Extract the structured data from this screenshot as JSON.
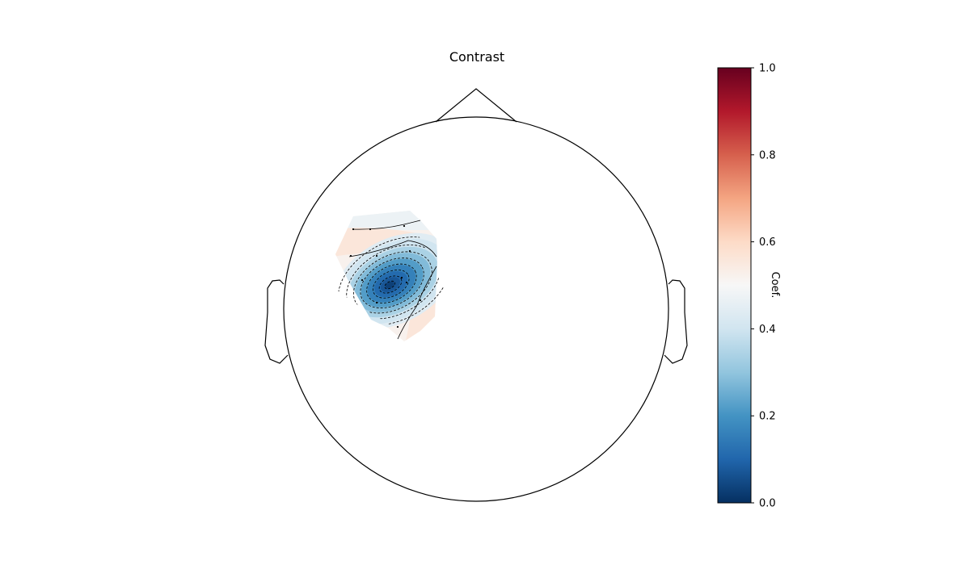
{
  "chart_data": {
    "type": "heatmap",
    "subtype": "topomap",
    "title": "Contrast",
    "colorbar": {
      "label": "Coef.",
      "range": [
        0.0,
        1.0
      ],
      "ticks": [
        "0.0",
        "0.2",
        "0.4",
        "0.6",
        "0.8",
        "1.0"
      ],
      "colormap": "RdBu_r",
      "colors": [
        "#053061",
        "#2166ac",
        "#4393c3",
        "#92c5de",
        "#d1e5f0",
        "#f7f7f7",
        "#fddbc7",
        "#f4a582",
        "#d6604d",
        "#b2182b",
        "#67001f"
      ]
    },
    "field": {
      "minimum_value": 0.0,
      "region": "left frontal-central",
      "contour_levels": [
        0.06,
        0.12,
        0.18,
        0.24,
        0.3,
        0.36,
        0.42,
        0.48,
        0.54
      ]
    }
  }
}
